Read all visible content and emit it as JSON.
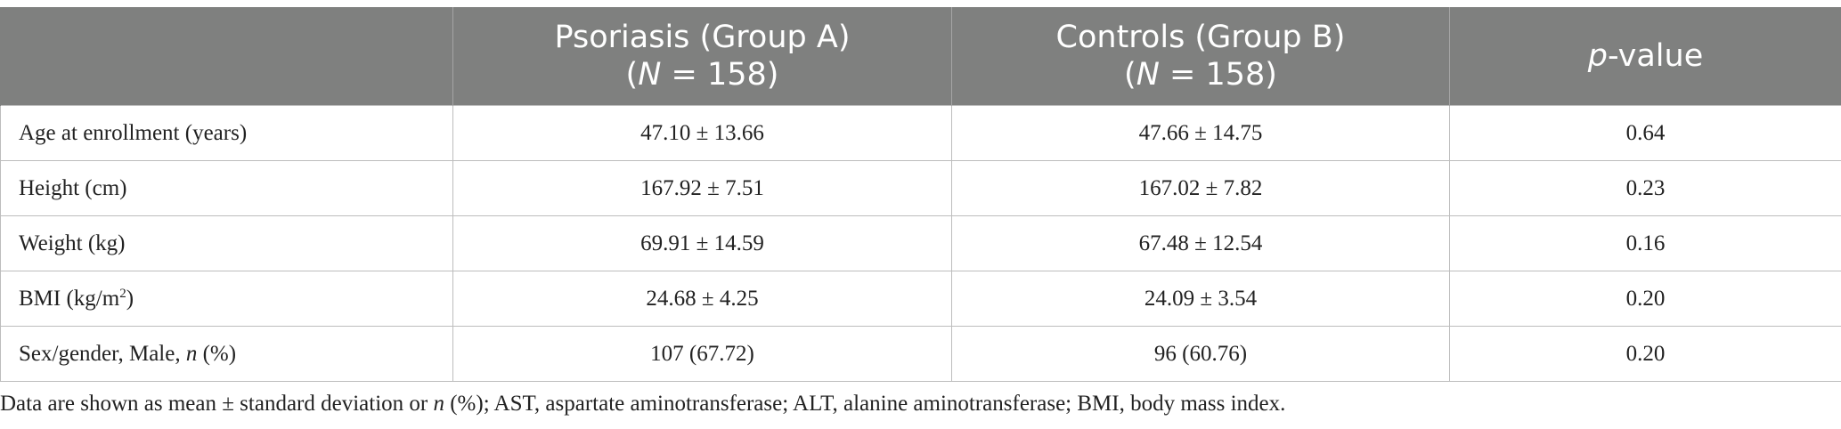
{
  "table": {
    "headers": [
      {
        "line1": "",
        "n_prefix": "",
        "n_letter": "",
        "n_value": ""
      },
      {
        "line1": "Psoriasis (Group A)",
        "n_prefix": "(",
        "n_letter": "N",
        "n_value": " = 158)"
      },
      {
        "line1": "Controls (Group B)",
        "n_prefix": "(",
        "n_letter": "N",
        "n_value": " = 158)"
      },
      {
        "p_letter": "p",
        "p_rest": "-value"
      }
    ],
    "rows": [
      {
        "label": "Age at enrollment (years)",
        "group_a": "47.10 ± 13.66",
        "group_b": "47.66 ± 14.75",
        "p": "0.64"
      },
      {
        "label": "Height (cm)",
        "group_a": "167.92 ± 7.51",
        "group_b": "167.02 ± 7.82",
        "p": "0.23"
      },
      {
        "label": "Weight (kg)",
        "group_a": "69.91 ± 14.59",
        "group_b": "67.48 ± 12.54",
        "p": "0.16"
      },
      {
        "label_pre": "BMI (kg/m",
        "label_sup": "2",
        "label_post": ")",
        "group_a": "24.68 ± 4.25",
        "group_b": "24.09 ± 3.54",
        "p": "0.20"
      },
      {
        "label_pre": "Sex/gender, Male, ",
        "label_italic": "n",
        "label_post": " (%)",
        "group_a": "107 (67.72)",
        "group_b": "96 (60.76)",
        "p": "0.20"
      }
    ]
  },
  "footnote": {
    "part1": "Data are shown as mean ± standard deviation or ",
    "italic": "n",
    "part2": " (%); AST, aspartate aminotransferase; ALT, alanine aminotransferase; BMI, body mass index."
  }
}
